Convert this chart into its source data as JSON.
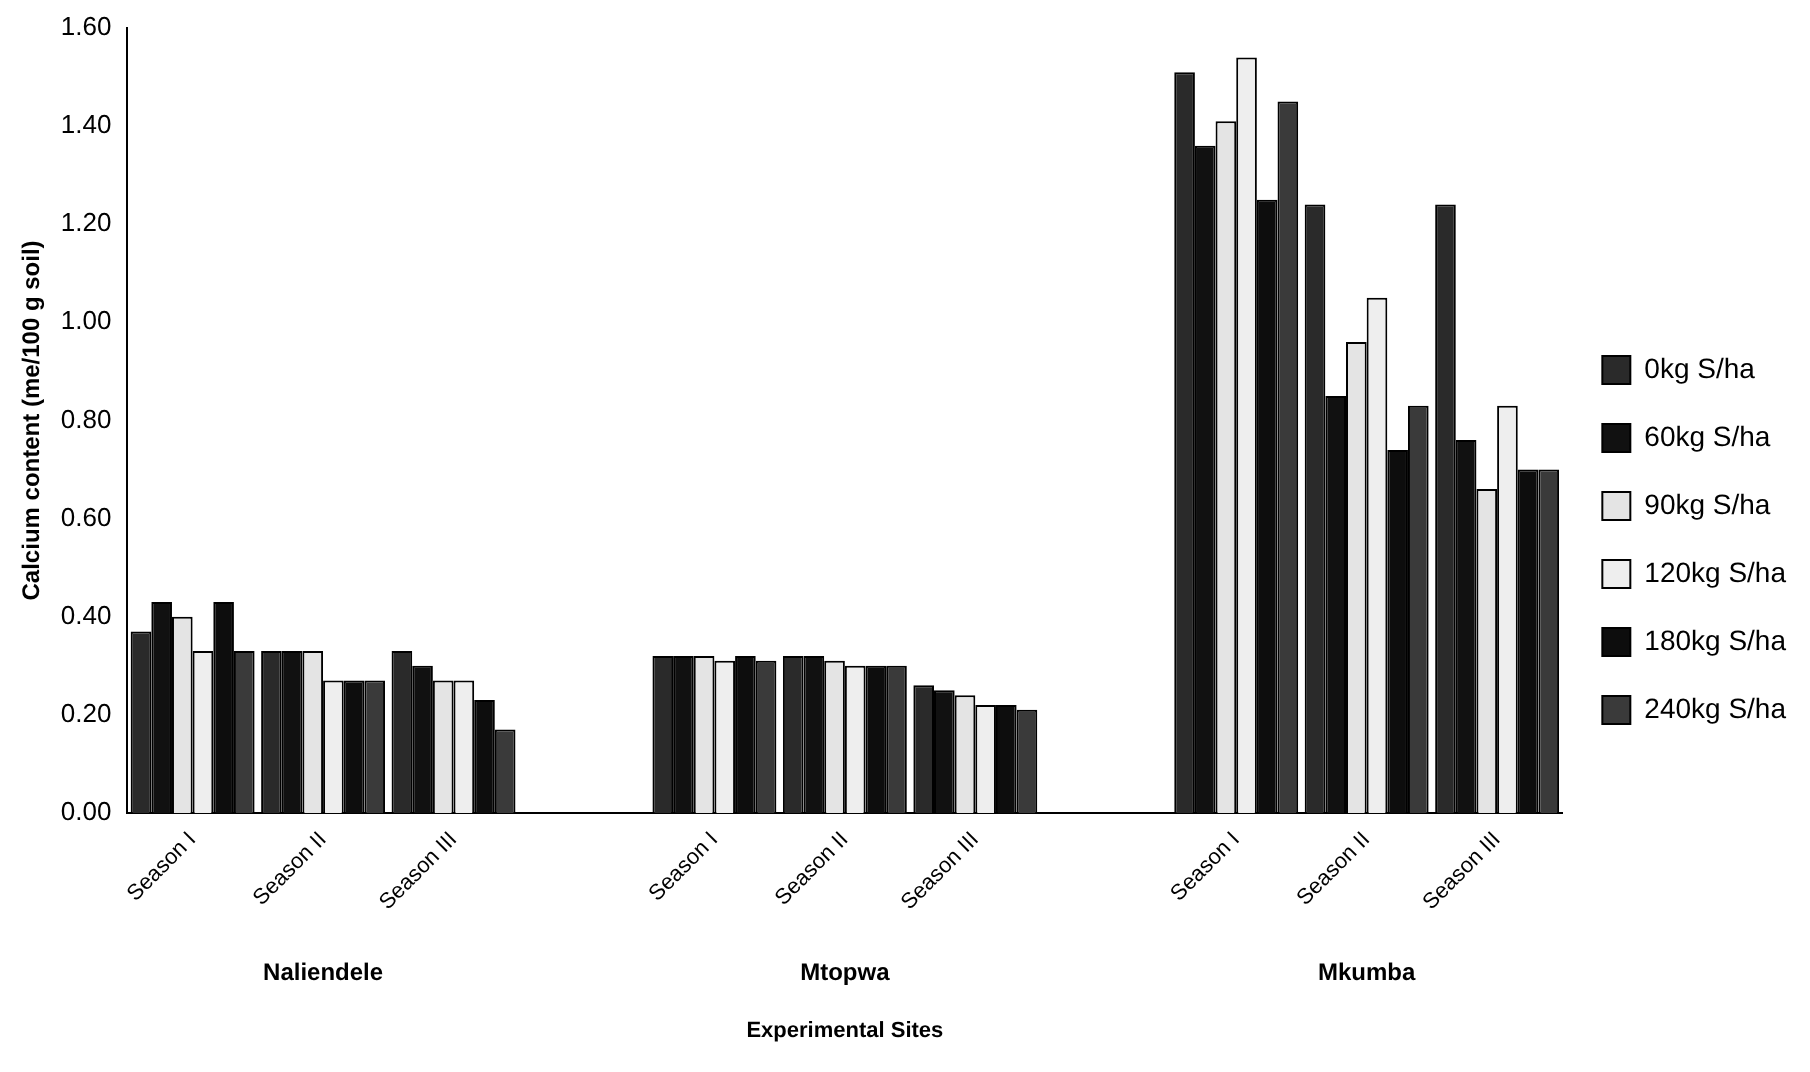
{
  "chart_data": {
    "type": "bar",
    "xlabel": "Experimental Sites",
    "ylabel": "Calcium content (me/100 g soil)",
    "categories": [
      "Season I",
      "Season II",
      "Season III",
      null,
      "Season I",
      "Season II",
      "Season III",
      null,
      "Season I",
      "Season II",
      "Season III"
    ],
    "series": [
      {
        "name": "0kg S/ha",
        "color": "#2a2a2a",
        "values": [
          0.37,
          0.33,
          0.33,
          null,
          0.32,
          0.32,
          0.26,
          null,
          1.51,
          1.24,
          1.24
        ]
      },
      {
        "name": "60kg S/ha",
        "color": "#111111",
        "values": [
          0.43,
          0.33,
          0.3,
          null,
          0.32,
          0.32,
          0.25,
          null,
          1.36,
          0.85,
          0.76
        ]
      },
      {
        "name": "90kg S/ha",
        "color": "#e4e4e4",
        "values": [
          0.4,
          0.33,
          0.27,
          null,
          0.32,
          0.31,
          0.24,
          null,
          1.41,
          0.96,
          0.66
        ]
      },
      {
        "name": "120kg S/ha",
        "color": "#eeeeee",
        "values": [
          0.33,
          0.27,
          0.27,
          null,
          0.31,
          0.3,
          0.22,
          null,
          1.54,
          1.05,
          0.83
        ]
      },
      {
        "name": "180kg S/ha",
        "color": "#0d0d0d",
        "values": [
          0.43,
          0.27,
          0.23,
          null,
          0.32,
          0.3,
          0.22,
          null,
          1.25,
          0.74,
          0.7
        ]
      },
      {
        "name": "240kg S/ha",
        "color": "#3a3a3a",
        "values": [
          0.33,
          0.27,
          0.17,
          null,
          0.31,
          0.3,
          0.21,
          null,
          1.45,
          0.83,
          0.7
        ]
      }
    ],
    "ylim": [
      0,
      1.6
    ],
    "yticks": [
      {
        "value": 0,
        "label": "0.00"
      },
      {
        "value": 0.2,
        "label": "0.20"
      },
      {
        "value": 0.4,
        "label": "0.40"
      },
      {
        "value": 0.6,
        "label": "0.60"
      },
      {
        "value": 0.8,
        "label": "0.80"
      },
      {
        "value": 1.0,
        "label": "1.00"
      },
      {
        "value": 1.2,
        "label": "1.20"
      },
      {
        "value": 1.4,
        "label": "1.40"
      },
      {
        "value": 1.6,
        "label": "1.60"
      }
    ],
    "annotations": [
      "Naliendele",
      "Mtopwa",
      "Mkumba"
    ],
    "grid": false,
    "legend": "right"
  }
}
